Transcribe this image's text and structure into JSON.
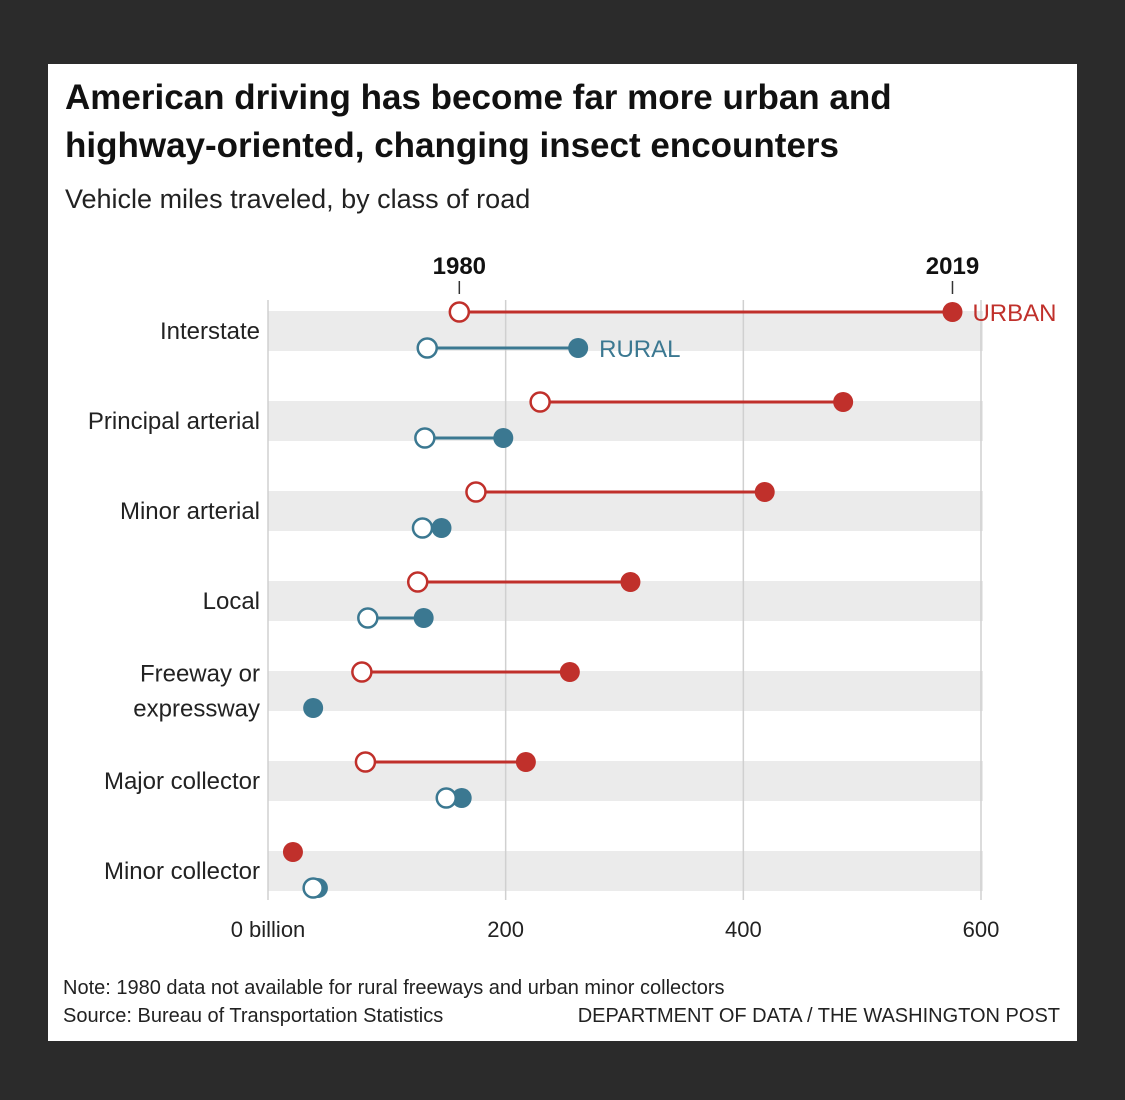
{
  "chart_data": {
    "type": "dumbbell",
    "title": "American driving has become far more urban and highway-oriented, changing insect encounters",
    "subtitle": "Vehicle miles traveled, by class of road",
    "years": [
      "1980",
      "2019"
    ],
    "xlim": [
      0,
      600
    ],
    "x_ticks": [
      0,
      200,
      400,
      600
    ],
    "x_tick_labels": [
      "0 billion",
      "200",
      "400",
      "600"
    ],
    "grid": true,
    "series_labels": {
      "urban": "URBAN",
      "rural": "RURAL"
    },
    "colors": {
      "urban": "#c0302b",
      "rural": "#3b7891",
      "band": "#ebebeb",
      "grid": "#d0d0d0"
    },
    "categories": [
      "Interstate",
      "Principal arterial",
      "Minor arterial",
      "Local",
      "Freeway or expressway",
      "Major collector",
      "Minor collector"
    ],
    "category_lines": [
      [
        "Interstate"
      ],
      [
        "Principal arterial"
      ],
      [
        "Minor arterial"
      ],
      [
        "Local"
      ],
      [
        "Freeway or",
        "expressway"
      ],
      [
        "Major collector"
      ],
      [
        "Minor collector"
      ]
    ],
    "urban": {
      "1980": [
        161,
        229,
        175,
        126,
        79,
        82,
        null
      ],
      "2019": [
        576,
        484,
        418,
        305,
        254,
        217,
        21
      ]
    },
    "rural": {
      "1980": [
        134,
        132,
        130,
        84,
        null,
        150,
        38
      ],
      "2019": [
        261,
        198,
        146,
        131,
        38,
        163,
        42
      ]
    }
  },
  "footer": {
    "note": "Note: 1980 data not available for rural freeways and urban minor collectors",
    "source": "Source: Bureau of Transportation Statistics",
    "credit": "DEPARTMENT OF DATA / THE WASHINGTON POST"
  }
}
